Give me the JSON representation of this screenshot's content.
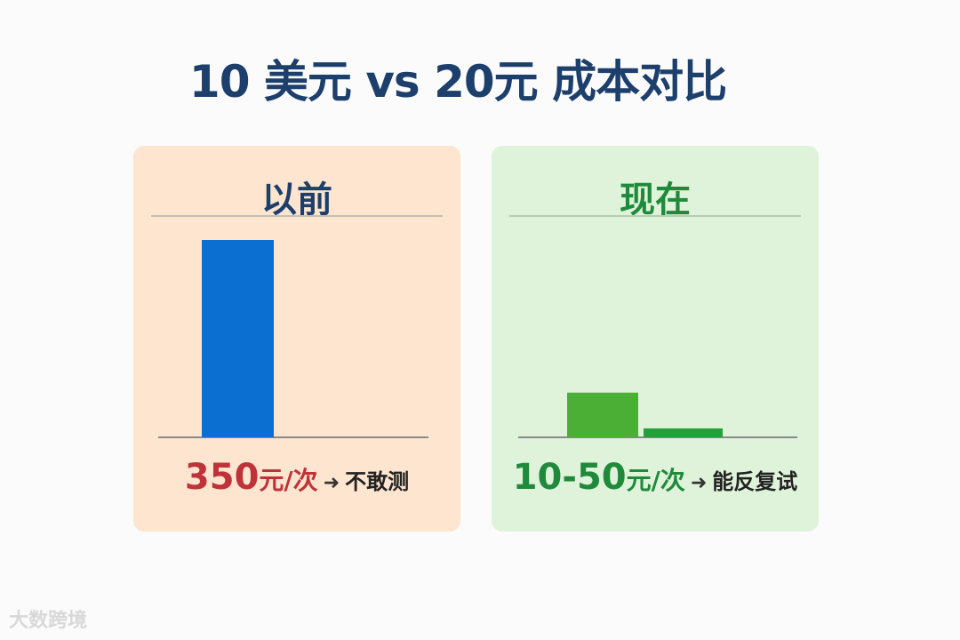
{
  "title": "10 美元 vs 20元 成本对比",
  "chart_data": [
    {
      "type": "bar",
      "title": "以前",
      "caption": {
        "price": "350",
        "unit": "元/次",
        "arrow": "➜",
        "note": "不敢测"
      },
      "colors": [
        "#0a6fd0"
      ],
      "axis_max": 350,
      "series": [
        {
          "values": [
            350
          ]
        }
      ]
    },
    {
      "type": "bar",
      "title": "现在",
      "caption": {
        "price": "10-50",
        "unit": "元/次",
        "arrow": "➜",
        "note": "能反复试"
      },
      "colors": [
        "#4caf35",
        "#24a03a"
      ],
      "axis_max": 350,
      "series": [
        {
          "values": [
            50,
            10
          ]
        }
      ]
    }
  ],
  "watermark": "大数跨境"
}
